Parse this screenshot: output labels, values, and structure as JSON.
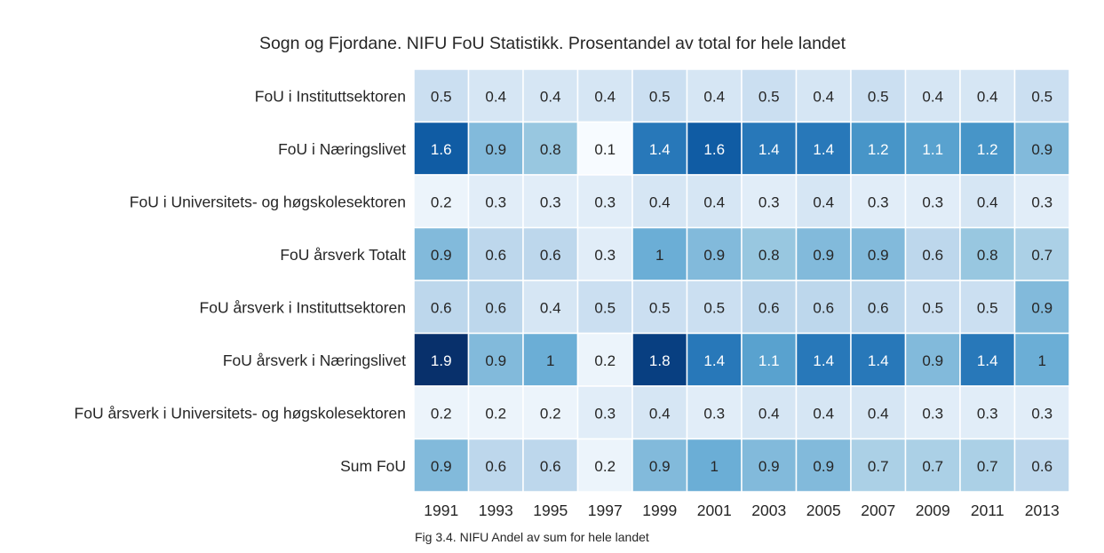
{
  "chart_data": {
    "type": "heatmap",
    "title": "Sogn og Fjordane. NIFU FoU Statistikk. Prosentandel av total for hele landet",
    "caption": "Fig 3.4. NIFU Andel av sum for hele landet",
    "xlabel": "",
    "ylabel": "",
    "columns": [
      "1991",
      "1993",
      "1995",
      "1997",
      "1999",
      "2001",
      "2003",
      "2005",
      "2007",
      "2009",
      "2011",
      "2013"
    ],
    "rows": [
      "FoU i Instituttsektoren",
      "FoU i Næringslivet",
      "FoU i Universitets- og høgskolesektoren",
      "FoU årsverk Totalt",
      "FoU årsverk i Instituttsektoren",
      "FoU årsverk i Næringslivet",
      "FoU årsverk i Universitets- og høgskolesektoren",
      "Sum FoU"
    ],
    "values": [
      [
        0.5,
        0.4,
        0.4,
        0.4,
        0.5,
        0.4,
        0.5,
        0.4,
        0.5,
        0.4,
        0.4,
        0.5
      ],
      [
        1.6,
        0.9,
        0.8,
        0.1,
        1.4,
        1.6,
        1.4,
        1.4,
        1.2,
        1.1,
        1.2,
        0.9
      ],
      [
        0.2,
        0.3,
        0.3,
        0.3,
        0.4,
        0.4,
        0.3,
        0.4,
        0.3,
        0.3,
        0.4,
        0.3
      ],
      [
        0.9,
        0.6,
        0.6,
        0.3,
        1,
        0.9,
        0.8,
        0.9,
        0.9,
        0.6,
        0.8,
        0.7
      ],
      [
        0.6,
        0.6,
        0.4,
        0.5,
        0.5,
        0.5,
        0.6,
        0.6,
        0.6,
        0.5,
        0.5,
        0.9
      ],
      [
        1.9,
        0.9,
        1,
        0.2,
        1.8,
        1.4,
        1.1,
        1.4,
        1.4,
        0.9,
        1.4,
        1
      ],
      [
        0.2,
        0.2,
        0.2,
        0.3,
        0.4,
        0.3,
        0.4,
        0.4,
        0.4,
        0.3,
        0.3,
        0.3
      ],
      [
        0.9,
        0.6,
        0.6,
        0.2,
        0.9,
        1,
        0.9,
        0.9,
        0.7,
        0.7,
        0.7,
        0.6
      ]
    ],
    "colormap": "Blues",
    "color_range": [
      0.1,
      1.9
    ],
    "grid": false,
    "legend": "none",
    "colors": {
      "low": "#f7fbff",
      "high": "#08306b",
      "text_dark": "#262626",
      "text_light": "#ffffff",
      "cell_border": "#ffffff"
    }
  }
}
